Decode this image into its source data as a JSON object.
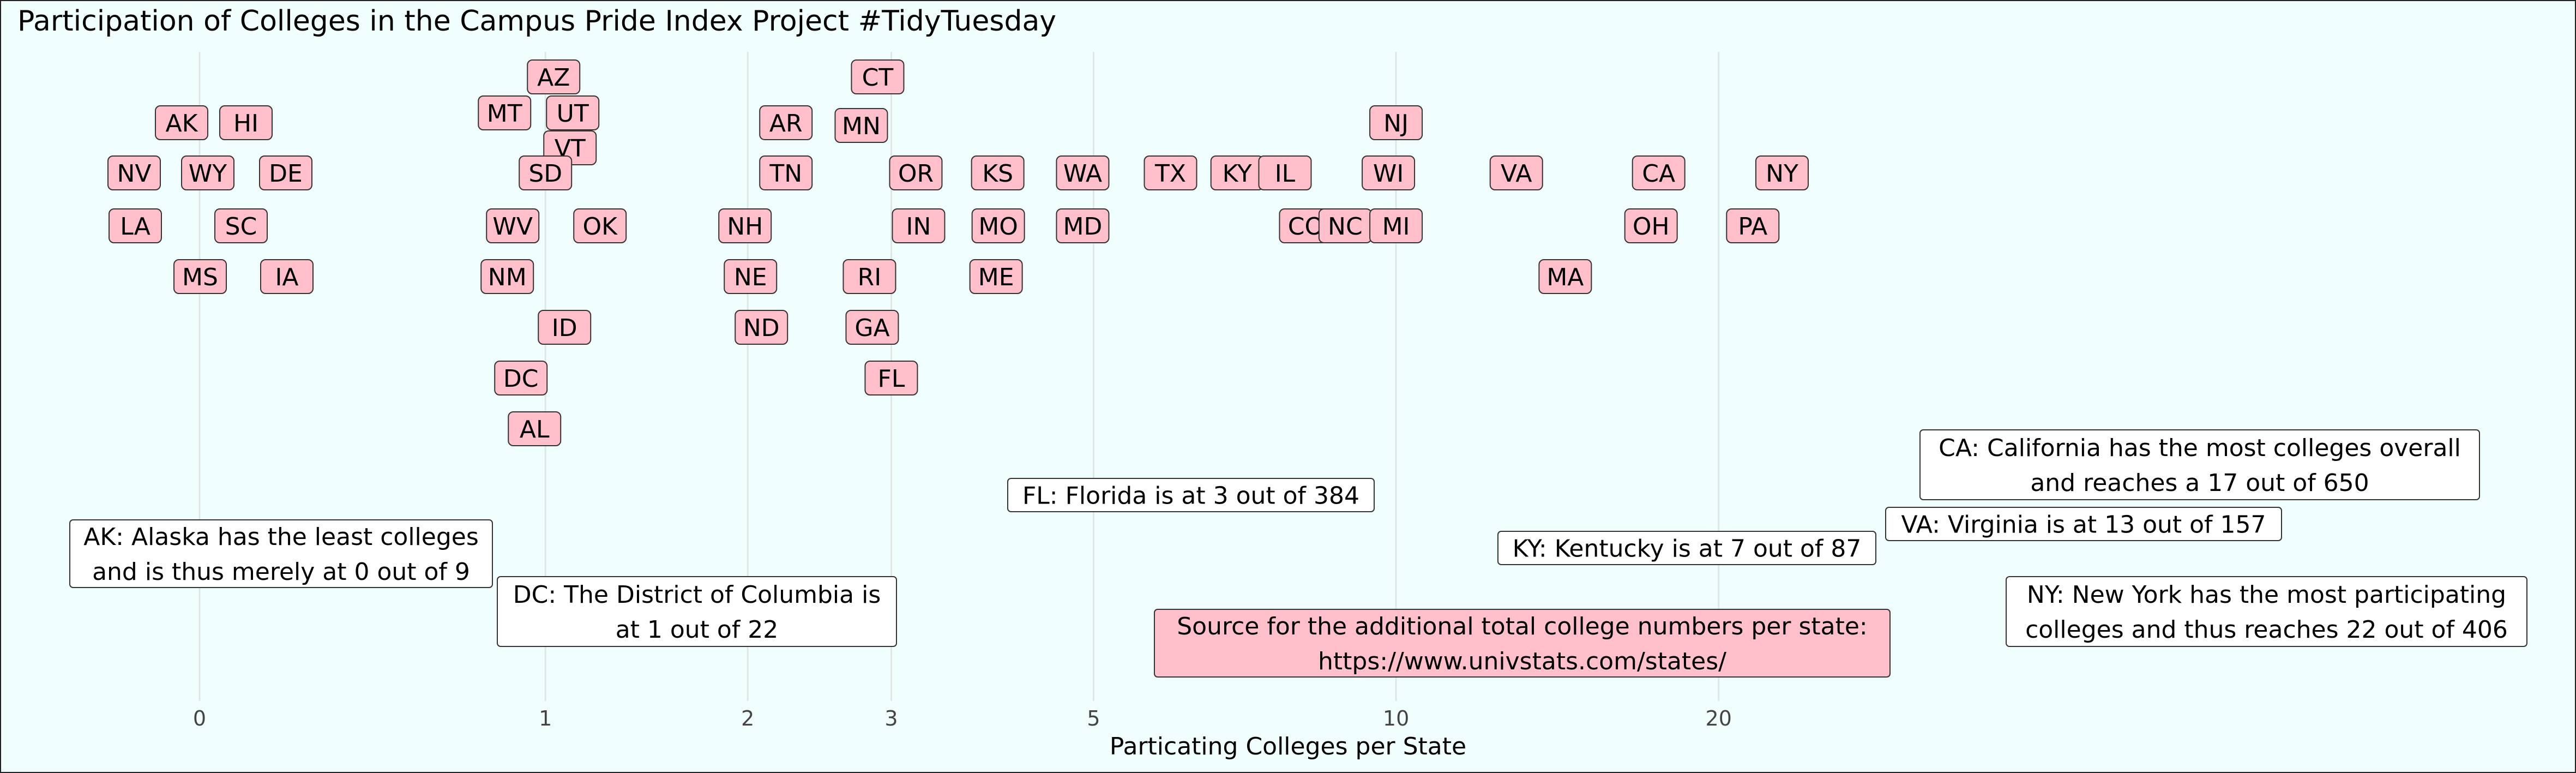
{
  "chart_data": {
    "type": "scatter",
    "title": "Participation of Colleges in the Campus Pride Index Project #TidyTuesday",
    "xlabel": "Particating Colleges per State",
    "ylabel": "",
    "x_scale": "log1p",
    "x_ticks": [
      0,
      1,
      2,
      3,
      5,
      10,
      20
    ],
    "grid": true,
    "points": [
      {
        "label": "AK",
        "x": 0
      },
      {
        "label": "HI",
        "x": 0
      },
      {
        "label": "NV",
        "x": 0
      },
      {
        "label": "WY",
        "x": 0
      },
      {
        "label": "DE",
        "x": 0
      },
      {
        "label": "LA",
        "x": 0
      },
      {
        "label": "SC",
        "x": 0
      },
      {
        "label": "MS",
        "x": 0
      },
      {
        "label": "IA",
        "x": 0
      },
      {
        "label": "AZ",
        "x": 1
      },
      {
        "label": "MT",
        "x": 1
      },
      {
        "label": "UT",
        "x": 1
      },
      {
        "label": "VT",
        "x": 1
      },
      {
        "label": "SD",
        "x": 1
      },
      {
        "label": "WV",
        "x": 1
      },
      {
        "label": "OK",
        "x": 1
      },
      {
        "label": "NM",
        "x": 1
      },
      {
        "label": "ID",
        "x": 1
      },
      {
        "label": "DC",
        "x": 1
      },
      {
        "label": "AL",
        "x": 1
      },
      {
        "label": "AR",
        "x": 2
      },
      {
        "label": "TN",
        "x": 2
      },
      {
        "label": "NH",
        "x": 2
      },
      {
        "label": "NE",
        "x": 2
      },
      {
        "label": "ND",
        "x": 2
      },
      {
        "label": "CT",
        "x": 3
      },
      {
        "label": "MN",
        "x": 3
      },
      {
        "label": "OR",
        "x": 3
      },
      {
        "label": "IN",
        "x": 3
      },
      {
        "label": "RI",
        "x": 3
      },
      {
        "label": "GA",
        "x": 3
      },
      {
        "label": "FL",
        "x": 3
      },
      {
        "label": "KS",
        "x": 4
      },
      {
        "label": "MO",
        "x": 4
      },
      {
        "label": "ME",
        "x": 4
      },
      {
        "label": "WA",
        "x": 5
      },
      {
        "label": "MD",
        "x": 5
      },
      {
        "label": "TX",
        "x": 6
      },
      {
        "label": "KY",
        "x": 7
      },
      {
        "label": "IL",
        "x": 8
      },
      {
        "label": "CO",
        "x": 8
      },
      {
        "label": "NC",
        "x": 9
      },
      {
        "label": "NJ",
        "x": 10
      },
      {
        "label": "WI",
        "x": 10
      },
      {
        "label": "MI",
        "x": 10
      },
      {
        "label": "VA",
        "x": 13
      },
      {
        "label": "CA",
        "x": 17
      },
      {
        "label": "OH",
        "x": 17
      },
      {
        "label": "MA",
        "x": 16
      },
      {
        "label": "NY",
        "x": 22
      },
      {
        "label": "PA",
        "x": 21
      }
    ],
    "annotations": [
      {
        "name": "alaska",
        "lines": [
          "AK: Alaska has the least colleges",
          "and is thus merely at 0 out of 9"
        ],
        "highlight": false
      },
      {
        "name": "dc",
        "lines": [
          "DC: The District of Columbia is",
          "at 1 out of 22"
        ],
        "highlight": false
      },
      {
        "name": "florida",
        "lines": [
          "FL: Florida is at 3 out of 384"
        ],
        "highlight": false
      },
      {
        "name": "source",
        "lines": [
          "Source for the additional total college numbers per state:",
          "https://www.univstats.com/states/"
        ],
        "highlight": true
      },
      {
        "name": "kentucky",
        "lines": [
          "KY: Kentucky is at 7 out of 87"
        ],
        "highlight": false
      },
      {
        "name": "virginia",
        "lines": [
          "VA: Virginia is at 13 out of 157"
        ],
        "highlight": false
      },
      {
        "name": "california",
        "lines": [
          "CA: California has the most colleges overall",
          "and reaches a 17 out of 650"
        ],
        "highlight": false
      },
      {
        "name": "new-york",
        "lines": [
          "NY: New York has the most participating",
          "colleges and thus reaches 22 out of 406"
        ],
        "highlight": false
      }
    ],
    "colors": {
      "background": "#f0fffe",
      "label_fill": "#ffc0cb",
      "label_border": "#333333",
      "note_fill": "#ffffff",
      "grid": "#dfe7e6",
      "text": "#000000"
    }
  }
}
